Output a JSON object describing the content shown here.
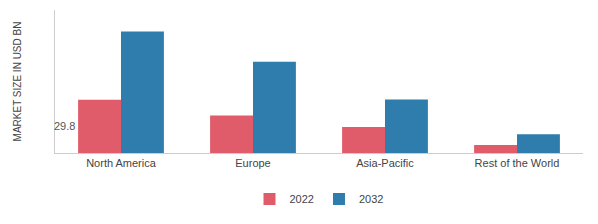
{
  "chart_data": {
    "type": "bar",
    "categories": [
      "North America",
      "Europe",
      "Asia-Pacific",
      "Rest of the World"
    ],
    "series": [
      {
        "name": "2022",
        "color": "#e05c6a",
        "values": [
          29.8,
          21.0,
          14.5,
          4.5
        ]
      },
      {
        "name": "2032",
        "color": "#2e7dac",
        "values": [
          68.0,
          51.0,
          30.0,
          10.5
        ]
      }
    ],
    "ylabel": "MARKET SIZE IN USD BN",
    "ylim": [
      0,
      80
    ],
    "tick_labels": "x",
    "grid": false,
    "legend": "bottom",
    "annotations": [
      {
        "text": "29.8",
        "x": "North America",
        "series": "2022"
      }
    ]
  }
}
